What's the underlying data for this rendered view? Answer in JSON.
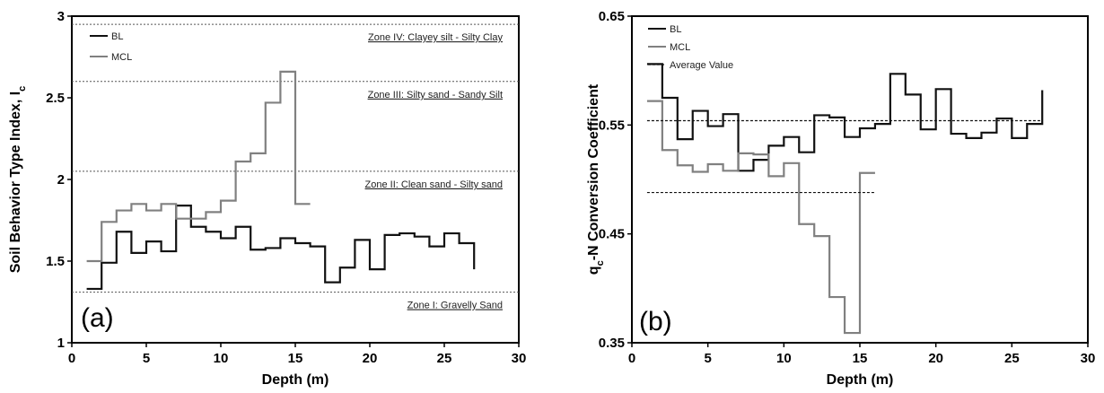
{
  "chart_data": [
    {
      "type": "line",
      "panel_label": "(a)",
      "xlabel": "Depth (m)",
      "ylabel": "Soil Behavior Type Index, I",
      "ylabel_sub": "c",
      "xlim": [
        0,
        30
      ],
      "ylim": [
        1,
        3
      ],
      "x_ticks": [
        "0",
        "5",
        "10",
        "15",
        "20",
        "25",
        "30"
      ],
      "y_ticks": [
        "1",
        "1.5",
        "2",
        "2.5",
        "3"
      ],
      "step": true,
      "legend_position": "top-left",
      "series": [
        {
          "name": "BL",
          "color": "#111111",
          "width": 2.2,
          "dash": "",
          "x": [
            1,
            2,
            3,
            4,
            5,
            6,
            7,
            8,
            9,
            10,
            11,
            12,
            13,
            14,
            15,
            16,
            17,
            18,
            19,
            20,
            21,
            22,
            23,
            24,
            25,
            26,
            27
          ],
          "y": [
            1.33,
            1.49,
            1.68,
            1.55,
            1.62,
            1.56,
            1.84,
            1.71,
            1.68,
            1.64,
            1.71,
            1.57,
            1.58,
            1.64,
            1.61,
            1.59,
            1.37,
            1.46,
            1.63,
            1.45,
            1.66,
            1.67,
            1.65,
            1.59,
            1.67,
            1.61,
            1.45
          ]
        },
        {
          "name": "MCL",
          "color": "#808080",
          "width": 2.2,
          "dash": "",
          "x": [
            1,
            2,
            3,
            4,
            5,
            6,
            7,
            8,
            9,
            10,
            11,
            12,
            13,
            14,
            15,
            16
          ],
          "y": [
            1.5,
            1.74,
            1.81,
            1.85,
            1.81,
            1.85,
            1.76,
            1.76,
            1.8,
            1.87,
            2.11,
            2.16,
            2.47,
            2.66,
            1.85,
            1.85
          ]
        }
      ],
      "zone_lines": [
        {
          "y": 2.95,
          "label": "Zone IV: Clayey silt - Silty Clay"
        },
        {
          "y": 2.6,
          "label": "Zone III: Silty sand - Sandy Silt"
        },
        {
          "y": 2.05,
          "label": "Zone II: Clean sand - Silty sand"
        },
        {
          "y": 1.31,
          "label": "Zone I: Gravelly Sand"
        }
      ]
    },
    {
      "type": "line",
      "panel_label": "(b)",
      "xlabel": "Depth (m)",
      "ylabel": "q",
      "ylabel_sub": "c",
      "ylabel_rest": "-N Conversion Coefficient",
      "xlim": [
        0,
        30
      ],
      "ylim": [
        0.35,
        0.65
      ],
      "x_ticks": [
        "0",
        "5",
        "10",
        "15",
        "20",
        "25",
        "30"
      ],
      "y_ticks": [
        "0.35",
        "0.45",
        "0.55",
        "0.65"
      ],
      "step": true,
      "legend_position": "top-left",
      "series": [
        {
          "name": "BL",
          "color": "#111111",
          "width": 2.2,
          "dash": "",
          "x": [
            1,
            2,
            3,
            4,
            5,
            6,
            7,
            8,
            9,
            10,
            11,
            12,
            13,
            14,
            15,
            16,
            17,
            18,
            19,
            20,
            21,
            22,
            23,
            24,
            25,
            26,
            27
          ],
          "y": [
            0.606,
            0.575,
            0.537,
            0.563,
            0.549,
            0.56,
            0.508,
            0.518,
            0.531,
            0.539,
            0.525,
            0.559,
            0.557,
            0.539,
            0.547,
            0.551,
            0.597,
            0.578,
            0.546,
            0.583,
            0.542,
            0.538,
            0.543,
            0.556,
            0.538,
            0.551,
            0.582
          ]
        },
        {
          "name": "MCL",
          "color": "#808080",
          "width": 2.2,
          "dash": "",
          "x": [
            1,
            2,
            3,
            4,
            5,
            6,
            7,
            8,
            9,
            10,
            11,
            12,
            13,
            14,
            15,
            16
          ],
          "y": [
            0.572,
            0.527,
            0.513,
            0.507,
            0.514,
            0.508,
            0.524,
            0.523,
            0.503,
            0.515,
            0.459,
            0.448,
            0.392,
            0.359,
            0.506,
            0.506
          ]
        },
        {
          "name": "Average Value",
          "color": "#111111",
          "width": 1.2,
          "dash": "3,2",
          "x": [
            1,
            27
          ],
          "y": [
            0.554,
            0.554
          ]
        },
        {
          "name": "",
          "color": "#111111",
          "width": 1.2,
          "dash": "3,2",
          "x": [
            1,
            16
          ],
          "y": [
            0.488,
            0.488
          ]
        }
      ]
    }
  ]
}
